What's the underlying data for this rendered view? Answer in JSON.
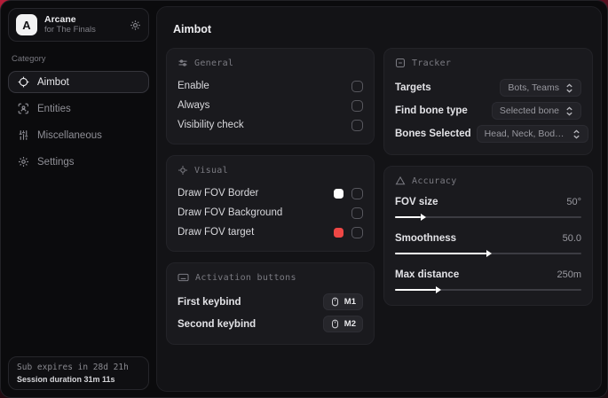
{
  "app": {
    "logo_letter": "A",
    "name": "Arcane",
    "subtitle": "for The Finals"
  },
  "sidebar": {
    "category_label": "Category",
    "items": [
      {
        "label": "Aimbot",
        "icon": "crosshair-icon",
        "active": true
      },
      {
        "label": "Entities",
        "icon": "entities-scan-icon",
        "active": false
      },
      {
        "label": "Miscellaneous",
        "icon": "sliders-icon",
        "active": false
      },
      {
        "label": "Settings",
        "icon": "gear-icon",
        "active": false
      }
    ],
    "subscription": {
      "expires": "Sub expires in 28d 21h",
      "session": "Session duration 31m 11s"
    }
  },
  "main": {
    "title": "Aimbot",
    "sections": {
      "general": {
        "title": "General",
        "rows": [
          {
            "label": "Enable",
            "checked": false
          },
          {
            "label": "Always",
            "checked": false
          },
          {
            "label": "Visibility check",
            "checked": false
          }
        ]
      },
      "visual": {
        "title": "Visual",
        "rows": [
          {
            "label": "Draw FOV Border",
            "swatch": "#ffffff",
            "checked": false
          },
          {
            "label": "Draw FOV Background",
            "swatch": null,
            "checked": false
          },
          {
            "label": "Draw FOV target",
            "swatch": "#ee4745",
            "checked": false
          }
        ]
      },
      "activation": {
        "title": "Activation buttons",
        "rows": [
          {
            "label": "First keybind",
            "key": "M1"
          },
          {
            "label": "Second keybind",
            "key": "M2"
          }
        ]
      },
      "tracker": {
        "title": "Tracker",
        "rows": [
          {
            "label": "Targets",
            "value": "Bots, Teams"
          },
          {
            "label": "Find bone type",
            "value": "Selected bone"
          },
          {
            "label": "Bones Selected",
            "value": "Head, Neck, Body, Pe.."
          }
        ]
      },
      "accuracy": {
        "title": "Accuracy",
        "rows": [
          {
            "label": "FOV size",
            "value": "50°",
            "percent": 14
          },
          {
            "label": "Smoothness",
            "value": "50.0",
            "percent": 49
          },
          {
            "label": "Max distance",
            "value": "250m",
            "percent": 22
          }
        ]
      }
    }
  },
  "colors": {
    "backdrop_red": "#b41c38",
    "accent_red": "#ee4745",
    "swatch_white": "#ffffff",
    "window_bg": "#0b0b0d",
    "panel_bg": "#131316",
    "card_bg": "#1a1a1e"
  }
}
